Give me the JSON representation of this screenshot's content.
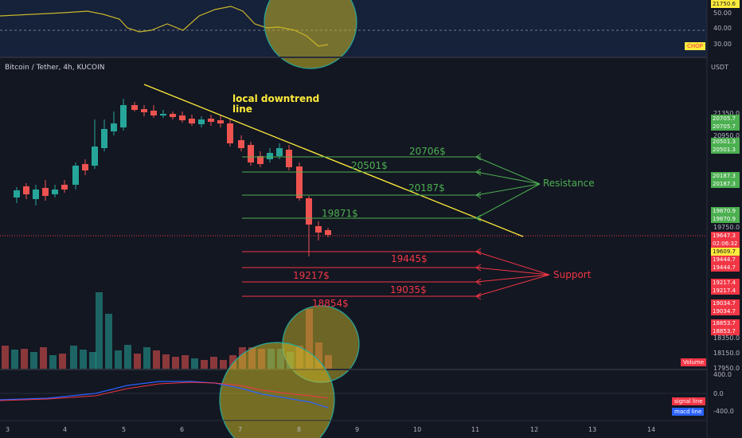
{
  "header": {
    "symbol_title": "Bitcoin / Tether, 4h, KUCOIN",
    "currency": "USDT"
  },
  "indicator_chop": {
    "tag": "CHOP",
    "ticks": [
      "50.00",
      "40.00",
      "30.00"
    ]
  },
  "price_axis": {
    "ticks": [
      "21350.0",
      "20950.0",
      "19750.0",
      "18350.0",
      "18150.0",
      "17950.0"
    ],
    "badges": [
      {
        "text": "21750.6",
        "color": "#ffeb3b",
        "y": 21750.6
      },
      {
        "text": "20705.7",
        "color": "#4caf50",
        "y": 20705.7
      },
      {
        "text": "20705.7",
        "color": "#4caf50",
        "y": 20705.7
      },
      {
        "text": "20501.3",
        "color": "#4caf50",
        "y": 20501.3
      },
      {
        "text": "20501.3",
        "color": "#4caf50",
        "y": 20501.3
      },
      {
        "text": "20187.3",
        "color": "#4caf50",
        "y": 20187.3
      },
      {
        "text": "20187.3",
        "color": "#4caf50",
        "y": 20187.3
      },
      {
        "text": "19870.9",
        "color": "#4caf50",
        "y": 19870.9
      },
      {
        "text": "19870.9",
        "color": "#4caf50",
        "y": 19870.9
      },
      {
        "text": "19647.3",
        "color": "#f23645",
        "y": 19647.3
      },
      {
        "text": "02:06:32",
        "color": "#f23645",
        "y": 19647.3
      },
      {
        "text": "19609.7",
        "color": "#ffeb3b",
        "y": 19609.7
      },
      {
        "text": "19444.7",
        "color": "#f23645",
        "y": 19444.7
      },
      {
        "text": "19444.7",
        "color": "#f23645",
        "y": 19444.7
      },
      {
        "text": "19217.4",
        "color": "#f23645",
        "y": 19217.4
      },
      {
        "text": "19217.4",
        "color": "#f23645",
        "y": 19217.4
      },
      {
        "text": "19034.7",
        "color": "#f23645",
        "y": 19034.7
      },
      {
        "text": "19034.7",
        "color": "#f23645",
        "y": 19034.7
      },
      {
        "text": "18853.7",
        "color": "#f23645",
        "y": 18853.7
      },
      {
        "text": "18853.7",
        "color": "#f23645",
        "y": 18853.7
      }
    ]
  },
  "volume_tag": "Volume",
  "macd": {
    "ticks": [
      "400.0",
      "0.0",
      "-400.0"
    ],
    "legend_signal": "signal line",
    "legend_macd": "macd line"
  },
  "x_axis": [
    "3",
    "4",
    "5",
    "6",
    "7",
    "8",
    "9",
    "10",
    "11",
    "12",
    "13",
    "14"
  ],
  "annotations": {
    "downtrend_line1": "local downtrend",
    "downtrend_line2": "line",
    "resistance": "Resistance",
    "support": "Support",
    "r1": "20706$",
    "r2": "20501$",
    "r3": "20187$",
    "r4": "19871$",
    "s1": "19445$",
    "s2": "19217$",
    "s3": "19035$",
    "s4": "18854$"
  },
  "colors": {
    "up": "#26a69a",
    "down": "#ef5350",
    "resistance": "#4caf50",
    "support": "#f23645",
    "trendline": "#ffeb3b"
  }
}
